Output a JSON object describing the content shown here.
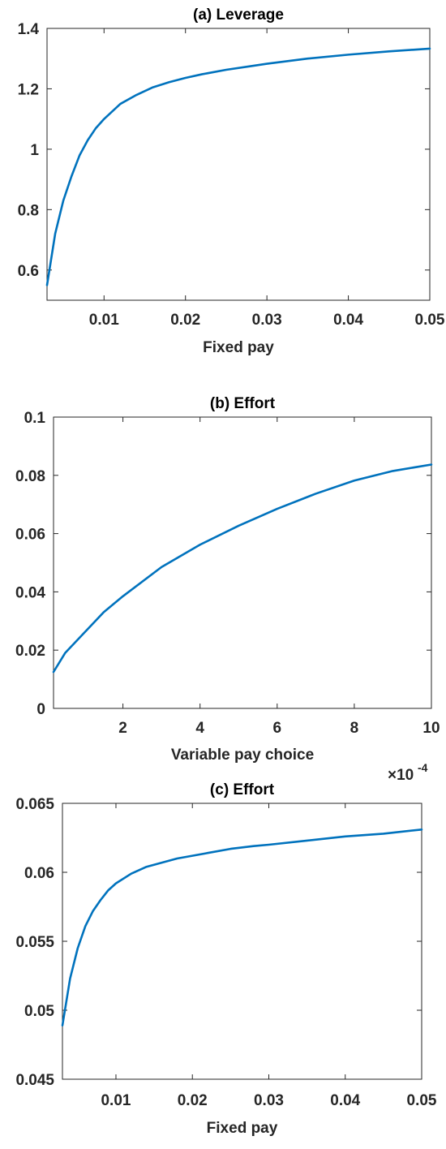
{
  "chart_data": [
    {
      "type": "line",
      "title": "(a) Leverage",
      "xlabel": "Fixed pay",
      "ylabel": "",
      "xlim": [
        0.003,
        0.05
      ],
      "ylim": [
        0.5,
        1.4
      ],
      "xticks": [
        0.01,
        0.02,
        0.03,
        0.04,
        0.05
      ],
      "xtick_labels": [
        "0.01",
        "0.02",
        "0.03",
        "0.04",
        "0.05"
      ],
      "yticks": [
        0.6,
        0.8,
        1.0,
        1.2,
        1.4
      ],
      "ytick_labels": [
        "0.6",
        "0.8",
        "1",
        "1.2",
        "1.4"
      ],
      "x_multiplier": "",
      "color": "#0072BD",
      "grid": false,
      "series": [
        {
          "x": [
            0.003,
            0.004,
            0.005,
            0.006,
            0.007,
            0.008,
            0.009,
            0.01,
            0.012,
            0.014,
            0.016,
            0.018,
            0.02,
            0.022,
            0.025,
            0.028,
            0.03,
            0.035,
            0.04,
            0.045,
            0.05
          ],
          "y": [
            0.55,
            0.72,
            0.83,
            0.91,
            0.98,
            1.03,
            1.07,
            1.1,
            1.15,
            1.18,
            1.205,
            1.222,
            1.236,
            1.248,
            1.263,
            1.275,
            1.283,
            1.3,
            1.313,
            1.324,
            1.333
          ]
        }
      ]
    },
    {
      "type": "line",
      "title": "(b) Effort",
      "xlabel": "Variable pay choice",
      "ylabel": "",
      "xlim": [
        0.2,
        10
      ],
      "ylim": [
        0,
        0.1
      ],
      "xticks": [
        2,
        4,
        6,
        8,
        10
      ],
      "xtick_labels": [
        "2",
        "4",
        "6",
        "8",
        "10"
      ],
      "yticks": [
        0,
        0.02,
        0.04,
        0.06,
        0.08,
        0.1
      ],
      "ytick_labels": [
        "0",
        "0.02",
        "0.04",
        "0.06",
        "0.08",
        "0.1"
      ],
      "x_multiplier": "×10",
      "x_multiplier_exp": "-4",
      "color": "#0072BD",
      "grid": false,
      "series": [
        {
          "x": [
            0.2,
            0.5,
            1,
            1.5,
            2,
            3,
            4,
            5,
            6,
            7,
            8,
            9,
            10
          ],
          "y": [
            0.0125,
            0.019,
            0.026,
            0.033,
            0.0385,
            0.0485,
            0.0562,
            0.0627,
            0.0685,
            0.0737,
            0.0782,
            0.0815,
            0.0837
          ]
        }
      ]
    },
    {
      "type": "line",
      "title": "(c) Effort",
      "xlabel": "Fixed pay",
      "ylabel": "",
      "xlim": [
        0.003,
        0.05
      ],
      "ylim": [
        0.045,
        0.065
      ],
      "xticks": [
        0.01,
        0.02,
        0.03,
        0.04,
        0.05
      ],
      "xtick_labels": [
        "0.01",
        "0.02",
        "0.03",
        "0.04",
        "0.05"
      ],
      "yticks": [
        0.045,
        0.05,
        0.055,
        0.06,
        0.065
      ],
      "ytick_labels": [
        "0.045",
        "0.05",
        "0.055",
        "0.06",
        "0.065"
      ],
      "x_multiplier": "",
      "color": "#0072BD",
      "grid": false,
      "series": [
        {
          "x": [
            0.003,
            0.004,
            0.005,
            0.006,
            0.007,
            0.008,
            0.009,
            0.01,
            0.012,
            0.014,
            0.016,
            0.018,
            0.02,
            0.022,
            0.025,
            0.028,
            0.03,
            0.035,
            0.04,
            0.045,
            0.05
          ],
          "y": [
            0.0489,
            0.0523,
            0.0545,
            0.0561,
            0.0572,
            0.058,
            0.0587,
            0.0592,
            0.0599,
            0.0604,
            0.0607,
            0.061,
            0.0612,
            0.0614,
            0.0617,
            0.0619,
            0.062,
            0.0623,
            0.0626,
            0.0628,
            0.0631
          ]
        }
      ]
    }
  ]
}
